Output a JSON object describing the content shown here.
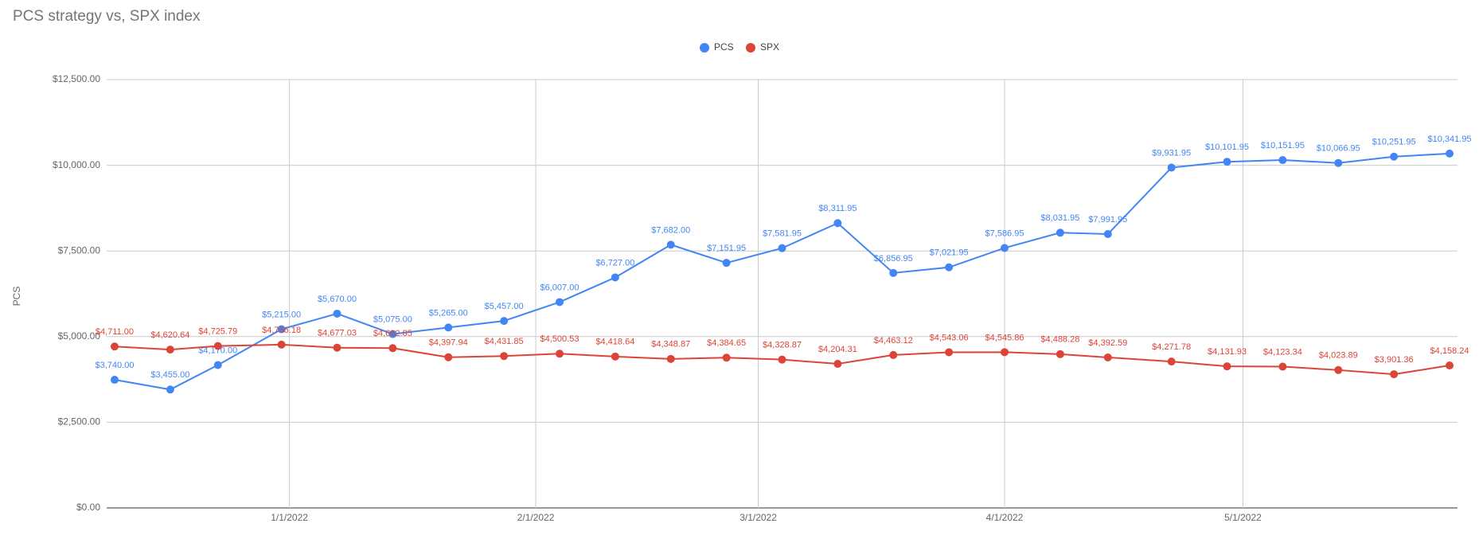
{
  "chart_data": {
    "type": "line",
    "title": "PCS strategy vs, SPX index",
    "y_label": "PCS",
    "x": [
      "2021-12-10",
      "2021-12-17",
      "2021-12-23",
      "2021-12-31",
      "2022-01-07",
      "2022-01-14",
      "2022-01-21",
      "2022-01-28",
      "2022-02-04",
      "2022-02-11",
      "2022-02-18",
      "2022-02-25",
      "2022-03-04",
      "2022-03-11",
      "2022-03-18",
      "2022-03-25",
      "2022-04-01",
      "2022-04-08",
      "2022-04-14",
      "2022-04-22",
      "2022-04-29",
      "2022-05-06",
      "2022-05-13",
      "2022-05-20",
      "2022-05-27"
    ],
    "xlim": [
      "2021-12-09",
      "2022-05-28"
    ],
    "xticks": [
      {
        "value": "2022-01-01",
        "label": "1/1/2022"
      },
      {
        "value": "2022-02-01",
        "label": "2/1/2022"
      },
      {
        "value": "2022-03-01",
        "label": "3/1/2022"
      },
      {
        "value": "2022-04-01",
        "label": "4/1/2022"
      },
      {
        "value": "2022-05-01",
        "label": "5/1/2022"
      }
    ],
    "ylim": [
      0,
      12500
    ],
    "yticks": [
      {
        "value": 0,
        "label": "$0.00"
      },
      {
        "value": 2500,
        "label": "$2,500.00"
      },
      {
        "value": 5000,
        "label": "$5,000.00"
      },
      {
        "value": 7500,
        "label": "$7,500.00"
      },
      {
        "value": 10000,
        "label": "$10,000.00"
      },
      {
        "value": 12500,
        "label": "$12,500.00"
      }
    ],
    "grid": true,
    "legend": "top",
    "series": [
      {
        "name": "PCS",
        "color": "#4285f4",
        "values": [
          3740,
          3455,
          4170,
          5215,
          5670,
          5075,
          5265,
          5457,
          6007,
          6727,
          7682,
          7151.95,
          7581.95,
          8311.95,
          6856.95,
          7021.95,
          7586.95,
          8031.95,
          7991.95,
          9931.95,
          10101.95,
          10151.95,
          10066.95,
          10251.95,
          10341.95
        ],
        "value_labels": [
          "$3,740.00",
          "$3,455.00",
          "$4,170.00",
          "$5,215.00",
          "$5,670.00",
          "$5,075.00",
          "$5,265.00",
          "$5,457.00",
          "$6,007.00",
          "$6,727.00",
          "$7,682.00",
          "$7,151.95",
          "$7,581.95",
          "$8,311.95",
          "$6,856.95",
          "$7,021.95",
          "$7,586.95",
          "$8,031.95",
          "$7,991.95",
          "$9,931.95",
          "$10,101.95",
          "$10,151.95",
          "$10,066.95",
          "$10,251.95",
          "$10,341.95"
        ]
      },
      {
        "name": "SPX",
        "color": "#db4437",
        "values": [
          4711,
          4620.64,
          4725.79,
          4766.18,
          4677.03,
          4662.85,
          4397.94,
          4431.85,
          4500.53,
          4418.64,
          4348.87,
          4384.65,
          4328.87,
          4204.31,
          4463.12,
          4543.06,
          4545.86,
          4488.28,
          4392.59,
          4271.78,
          4131.93,
          4123.34,
          4023.89,
          3901.36,
          4158.24
        ],
        "value_labels": [
          "$4,711.00",
          "$4,620.64",
          "$4,725.79",
          "$4,766.18",
          "$4,677.03",
          "$4,662.85",
          "$4,397.94",
          "$4,431.85",
          "$4,500.53",
          "$4,418.64",
          "$4,348.87",
          "$4,384.65",
          "$4,328.87",
          "$4,204.31",
          "$4,463.12",
          "$4,543.06",
          "$4,545.86",
          "$4,488.28",
          "$4,392.59",
          "$4,271.78",
          "$4,131.93",
          "$4,123.34",
          "$4,023.89",
          "$3,901.36",
          "$4,158.24"
        ]
      }
    ]
  }
}
